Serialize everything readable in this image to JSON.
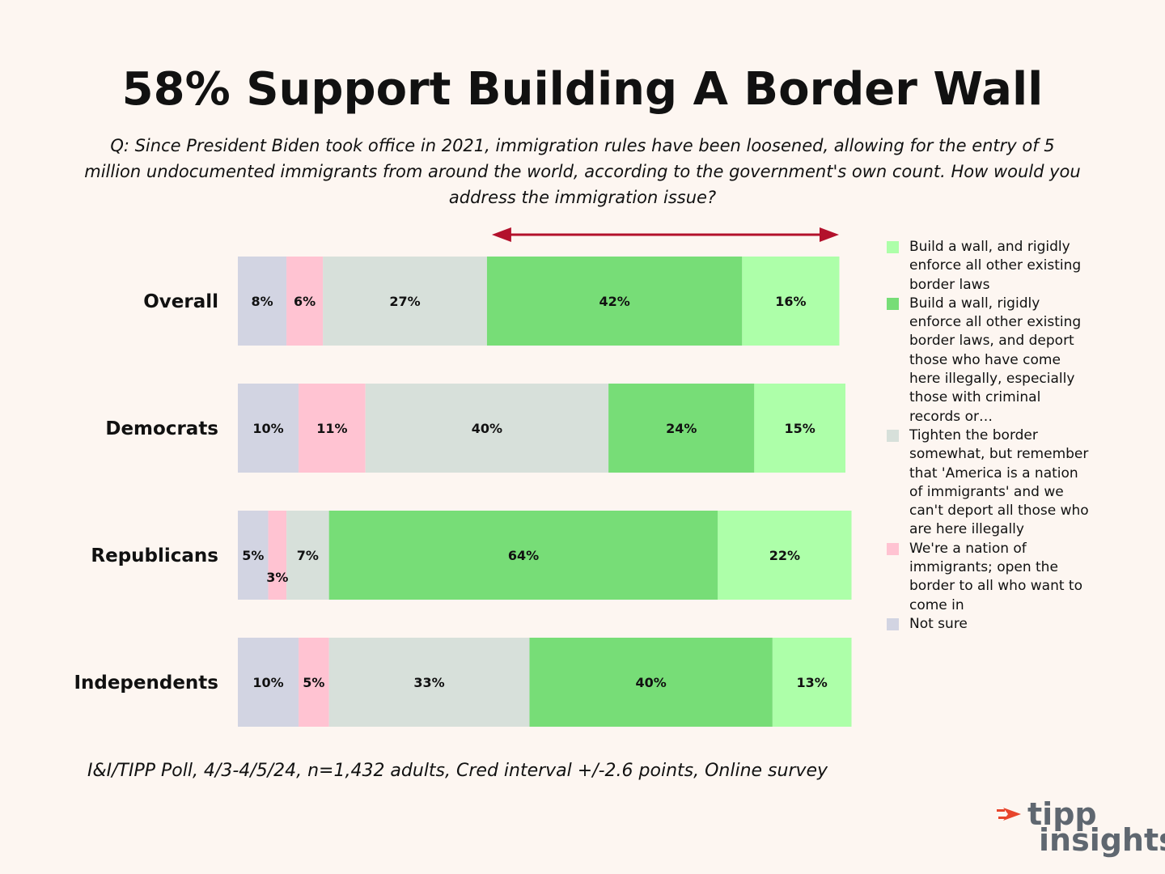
{
  "title": "58% Support Building A Border Wall",
  "subtitle": "Q: Since President Biden took office in 2021, immigration rules have been loosened, allowing for the entry of 5 million undocumented immigrants from around the world, according to the government's own count. How would you address the immigration issue?",
  "source": "I&I/TIPP Poll, 4/3-4/5/24, n=1,432 adults, Cred interval +/-2.6 points, Online survey",
  "logo": {
    "line1": "tipp",
    "line2": "insights"
  },
  "colors": {
    "not_sure": "#d2d4e2",
    "open_border": "#ffc3d2",
    "tighten": "#d7e0da",
    "wall_deport": "#77dd77",
    "wall_enforce": "#adffa9",
    "arrow": "#b3112c"
  },
  "chart_data": {
    "type": "bar",
    "orientation": "horizontal",
    "stacked": true,
    "normalized_total": 100,
    "categories": [
      "Overall",
      "Democrats",
      "Republicans",
      "Independents"
    ],
    "series": [
      {
        "key": "not_sure",
        "name": "Not sure",
        "values": [
          8,
          10,
          5,
          10
        ],
        "labels": [
          "8%",
          "10%",
          "5%",
          "10%"
        ]
      },
      {
        "key": "open_border",
        "name": "We're a nation of immigrants; open the border to all who want to come in",
        "values": [
          6,
          11,
          3,
          5
        ],
        "labels": [
          "6%",
          "11%",
          "3%",
          "5%"
        ]
      },
      {
        "key": "tighten",
        "name": "Tighten the border somewhat, but remember that 'America is a nation of immigrants' and we can't deport all those who are here illegally",
        "values": [
          27,
          40,
          7,
          33
        ],
        "labels": [
          "27%",
          "40%",
          "7%",
          "33%"
        ]
      },
      {
        "key": "wall_deport",
        "name": "Build a wall, rigidly enforce all other existing border laws, and deport those who have come here illegally, especially those with criminal records or…",
        "values": [
          42,
          24,
          64,
          40
        ],
        "labels": [
          "42%",
          "24%",
          "64%",
          "40%"
        ]
      },
      {
        "key": "wall_enforce",
        "name": "Build a wall, and rigidly enforce all other existing border laws",
        "values": [
          16,
          15,
          22,
          13
        ],
        "labels": [
          "16%",
          "15%",
          "22%",
          "13%"
        ]
      }
    ],
    "legend": {
      "position": "right",
      "order": [
        "wall_enforce",
        "wall_deport",
        "tighten",
        "open_border",
        "not_sure"
      ]
    },
    "annotation": "double-headed arrow spanning the two 'Build a wall' segments of the Overall bar"
  }
}
